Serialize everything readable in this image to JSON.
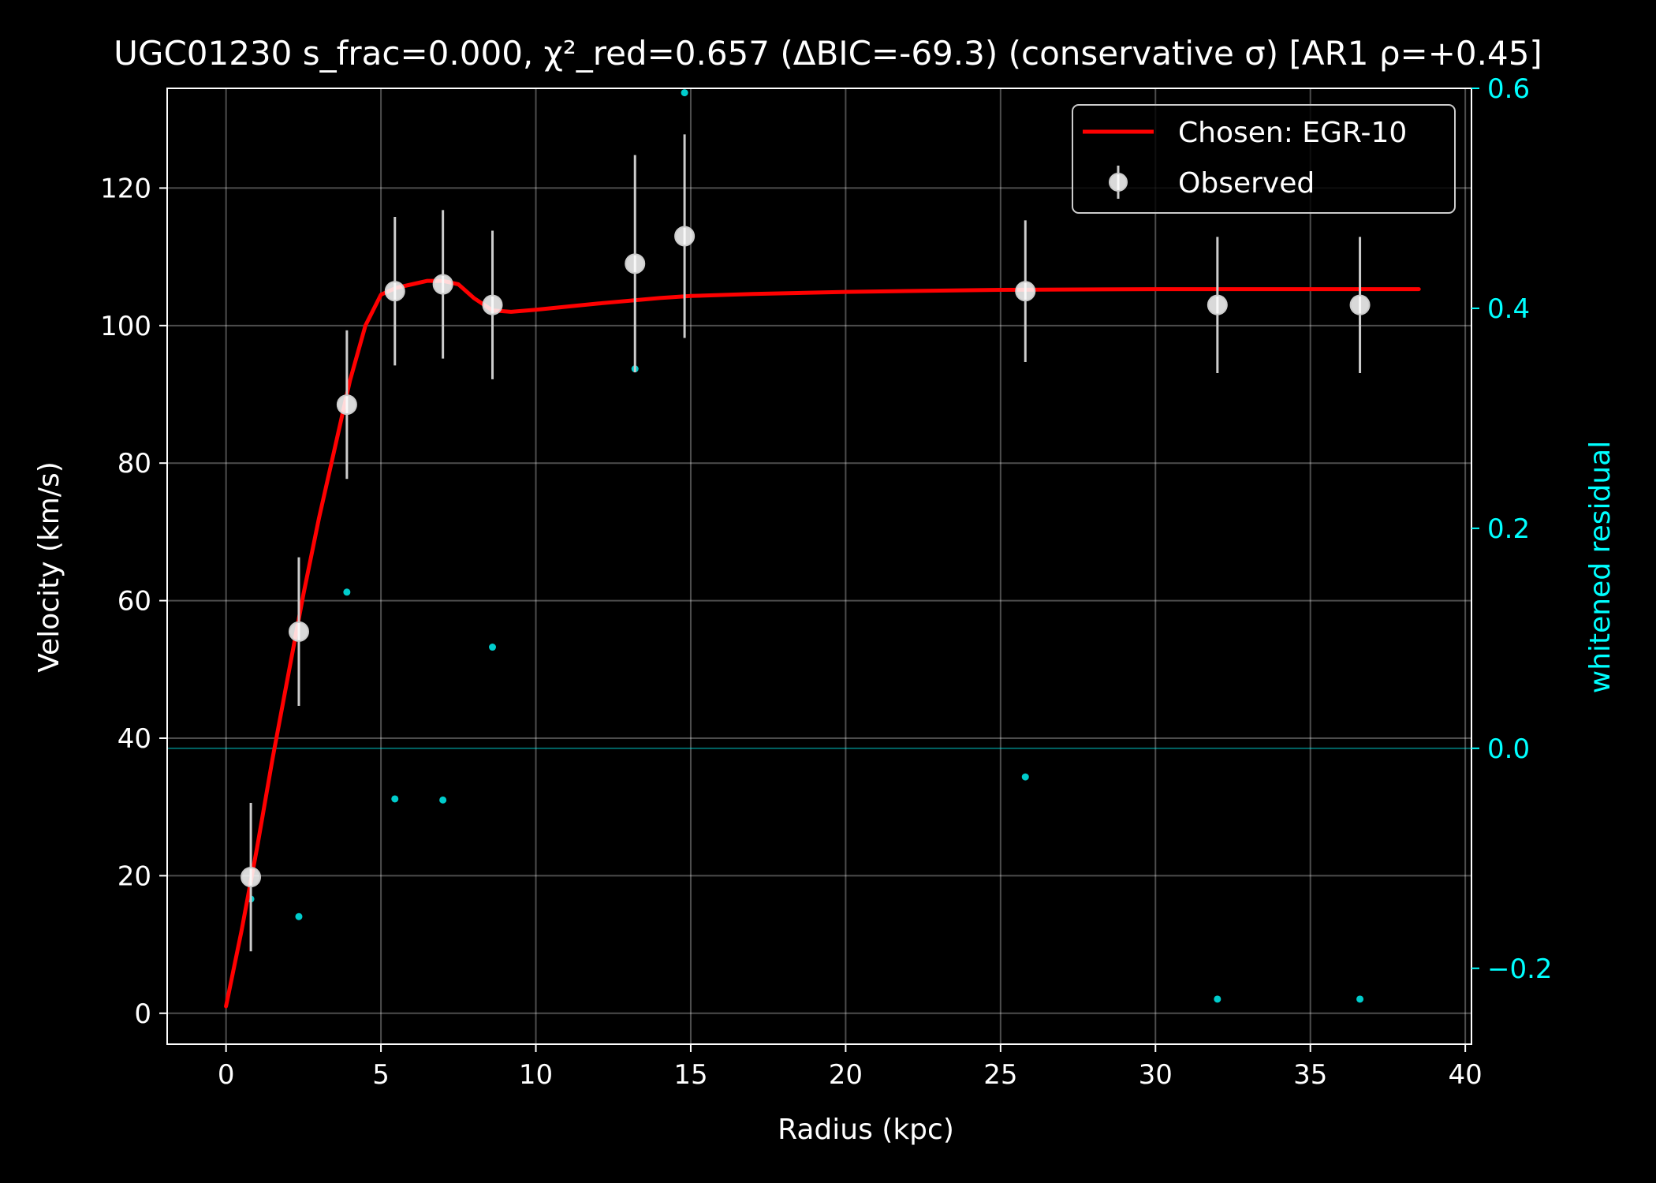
{
  "chart_data": {
    "type": "scatter",
    "title": "UGC01230  s_frac=0.000, χ²_red=0.657  (ΔBIC=-69.3) (conservative σ) [AR1 ρ=+0.45]",
    "xlabel": "Radius (kpc)",
    "ylabel": "Velocity (km/s)",
    "y2label": "whitened residual",
    "xlim": [
      -1.9,
      40.2
    ],
    "ylim": [
      -4.5,
      134.5
    ],
    "y2lim": [
      -0.269,
      0.6
    ],
    "xticks": [
      0,
      5,
      10,
      15,
      20,
      25,
      30,
      35,
      40
    ],
    "yticks": [
      0,
      20,
      40,
      60,
      80,
      100,
      120
    ],
    "y2ticks": [
      -0.2,
      0.0,
      0.2,
      0.4,
      0.6
    ],
    "y2tick_labels": [
      "−0.2",
      "0.0",
      "0.2",
      "0.4",
      "0.6"
    ],
    "grid": true,
    "legend_position": "top-right",
    "legend": [
      {
        "label": "Chosen: EGR-10",
        "kind": "line",
        "color": "#ff0000"
      },
      {
        "label": "Observed",
        "kind": "errorbar",
        "color": "#ffffff"
      }
    ],
    "colors": {
      "background": "#000000",
      "axes": "#ffffff",
      "model": "#ff0000",
      "observed": "#ffffff",
      "errorbar": "#cccccc",
      "residual": "#00cccc",
      "residual_axis": "#00ffff"
    },
    "series": [
      {
        "name": "Chosen: EGR-10",
        "kind": "line",
        "x": [
          0,
          0.5,
          1.0,
          1.5,
          2.0,
          2.5,
          3.0,
          3.5,
          4.0,
          4.5,
          5.0,
          5.5,
          6.0,
          6.5,
          7.0,
          7.5,
          8.0,
          8.6,
          9.2,
          10,
          12,
          14,
          15,
          17,
          20,
          25,
          30,
          35,
          38.5
        ],
        "y": [
          1,
          12,
          24,
          37,
          49,
          61,
          72,
          82,
          92,
          100,
          104.5,
          105.5,
          106,
          106.5,
          106.5,
          106,
          104,
          102.2,
          102,
          102.3,
          103.2,
          104,
          104.3,
          104.6,
          104.9,
          105.2,
          105.3,
          105.3,
          105.3
        ]
      },
      {
        "name": "Observed",
        "kind": "errorbar",
        "x": [
          0.8,
          2.35,
          3.9,
          5.45,
          7.0,
          8.6,
          13.2,
          14.8,
          25.8,
          32.0,
          36.6
        ],
        "y": [
          19.8,
          55.5,
          88.5,
          105.0,
          106.0,
          103.0,
          109.0,
          113.0,
          105.0,
          103.0,
          103.0
        ],
        "yerr": [
          10.8,
          10.8,
          10.8,
          10.8,
          10.8,
          10.8,
          15.8,
          14.8,
          10.3,
          9.9,
          9.9
        ]
      },
      {
        "name": "whitened residual",
        "kind": "scatter",
        "axis": "y2",
        "x": [
          0.8,
          2.35,
          3.9,
          5.45,
          7.0,
          8.6,
          13.2,
          14.8,
          25.8,
          32.0,
          36.6
        ],
        "y": [
          -0.137,
          -0.153,
          0.142,
          -0.046,
          -0.047,
          0.092,
          0.345,
          0.596,
          -0.026,
          -0.228,
          -0.228
        ]
      }
    ]
  }
}
